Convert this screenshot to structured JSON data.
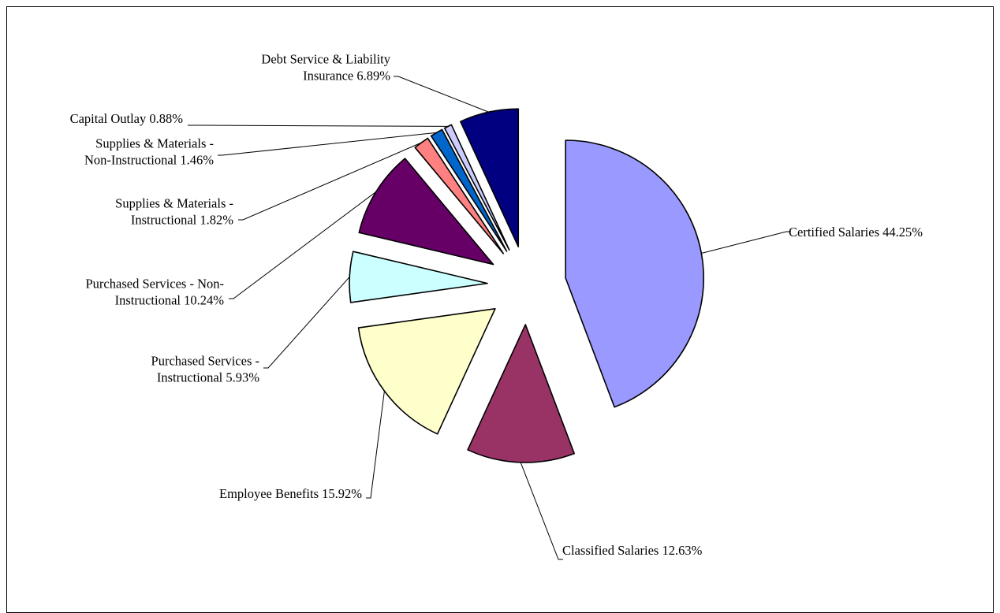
{
  "chart_data": {
    "type": "pie",
    "title": "",
    "exploded": true,
    "slices": [
      {
        "name": "Certified Salaries",
        "value": 44.25,
        "display": "44.25%",
        "label_lines": [
          "Certified Salaries 44.25%"
        ],
        "color": "#9999FF"
      },
      {
        "name": "Classified Salaries",
        "value": 12.63,
        "display": "12.63%",
        "label_lines": [
          "Classified Salaries 12.63%"
        ],
        "color": "#993366"
      },
      {
        "name": "Employee Benefits",
        "value": 15.92,
        "display": "15.92%",
        "label_lines": [
          "Employee Benefits 15.92%"
        ],
        "color": "#FFFFCC"
      },
      {
        "name": "Purchased Services - Instructional",
        "value": 5.93,
        "display": "5.93%",
        "label_lines": [
          "Purchased Services -",
          "Instructional 5.93%"
        ],
        "color": "#CCFFFF"
      },
      {
        "name": "Purchased Services - Non-Instructional",
        "value": 10.24,
        "display": "10.24%",
        "label_lines": [
          "Purchased Services - Non-",
          "Instructional 10.24%"
        ],
        "color": "#660066"
      },
      {
        "name": "Supplies & Materials - Instructional",
        "value": 1.82,
        "display": "1.82%",
        "label_lines": [
          "Supplies & Materials -",
          "Instructional 1.82%"
        ],
        "color": "#FF8080"
      },
      {
        "name": "Supplies & Materials - Non-Instructional",
        "value": 1.46,
        "display": "1.46%",
        "label_lines": [
          "Supplies & Materials -",
          "Non-Instructional 1.46%"
        ],
        "color": "#0066CC"
      },
      {
        "name": "Capital Outlay",
        "value": 0.88,
        "display": "0.88%",
        "label_lines": [
          "Capital Outlay 0.88%"
        ],
        "color": "#CCCCFF"
      },
      {
        "name": "Debt Service & Liability Insurance",
        "value": 6.89,
        "display": "6.89%",
        "label_lines": [
          "Debt Service & Liability",
          "Insurance 6.89%"
        ],
        "color": "#000080"
      }
    ]
  }
}
